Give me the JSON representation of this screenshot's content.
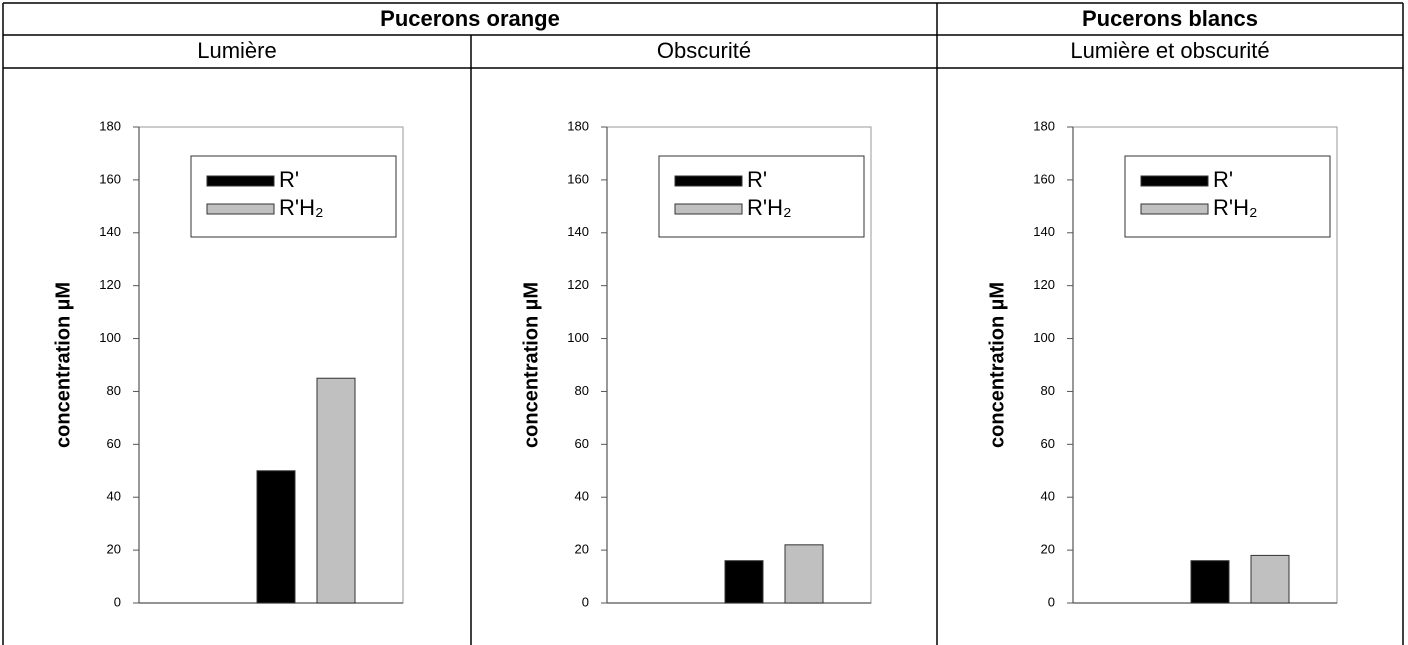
{
  "table": {
    "headers": [
      "Pucerons orange",
      "Pucerons blancs"
    ],
    "subheaders": [
      "Lumière",
      "Obscurité",
      "Lumière et obscurité"
    ]
  },
  "chart_data": [
    {
      "type": "bar",
      "y_label": "concentration µM",
      "categories": [
        null
      ],
      "series": [
        {
          "name": "R'",
          "color": "#000000",
          "values": [
            50
          ]
        },
        {
          "name": "R'H₂",
          "color": "#c0c0c0",
          "values": [
            85
          ]
        }
      ],
      "ylim": [
        0,
        180
      ],
      "yticks": [
        0,
        20,
        40,
        60,
        80,
        100,
        120,
        140,
        160,
        180
      ],
      "legend": "upper left"
    },
    {
      "type": "bar",
      "y_label": "concentration µM",
      "categories": [
        null
      ],
      "series": [
        {
          "name": "R'",
          "color": "#000000",
          "values": [
            16
          ]
        },
        {
          "name": "R'H₂",
          "color": "#c0c0c0",
          "values": [
            22
          ]
        }
      ],
      "ylim": [
        0,
        180
      ],
      "yticks": [
        0,
        20,
        40,
        60,
        80,
        100,
        120,
        140,
        160,
        180
      ],
      "legend": "upper left"
    },
    {
      "type": "bar",
      "y_label": "concentration µM",
      "categories": [
        null
      ],
      "series": [
        {
          "name": "R'",
          "color": "#000000",
          "values": [
            16
          ]
        },
        {
          "name": "R'H₂",
          "color": "#c0c0c0",
          "values": [
            18
          ]
        }
      ],
      "ylim": [
        0,
        180
      ],
      "yticks": [
        0,
        20,
        40,
        60,
        80,
        100,
        120,
        140,
        160,
        180
      ],
      "legend": "upper left"
    }
  ]
}
